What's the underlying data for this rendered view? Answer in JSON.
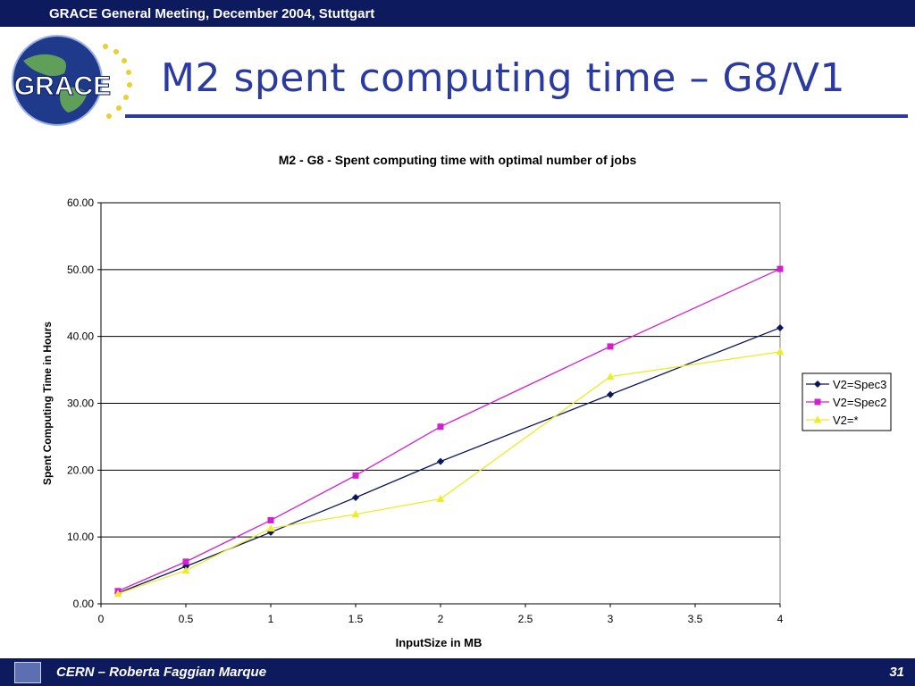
{
  "header": {
    "meeting": "GRACE General Meeting, December 2004, Stuttgart",
    "logo_text": "GRACE"
  },
  "slide": {
    "title": "M2 spent computing time – G8/V1"
  },
  "footer": {
    "author": "CERN – Roberta Faggian Marque",
    "page": "31"
  },
  "colors": {
    "bar_bg": "#0d1b5e",
    "title": "#2b3aa0",
    "spec3": "#0b1560",
    "spec2": "#d21fd2",
    "star": "#ecec2a"
  },
  "chart_data": {
    "type": "line",
    "title": "M2 - G8 - Spent computing time with optimal number of jobs",
    "xlabel": "InputSize in MB",
    "ylabel": "Spent Computing Time in Hours",
    "xlim": [
      0,
      4
    ],
    "ylim": [
      0,
      60
    ],
    "x_ticks": [
      "0",
      "0.5",
      "1",
      "1.5",
      "2",
      "2.5",
      "3",
      "3.5",
      "4"
    ],
    "y_ticks": [
      "0.00",
      "10.00",
      "20.00",
      "30.00",
      "40.00",
      "50.00",
      "60.00"
    ],
    "grid": "horizontal",
    "legend_position": "right",
    "series": [
      {
        "name": "V2=Spec3",
        "color": "#0b1560",
        "marker": "diamond",
        "points": [
          [
            0.1,
            1.6
          ],
          [
            0.5,
            5.6
          ],
          [
            1,
            10.7
          ],
          [
            1.5,
            15.9
          ],
          [
            2,
            21.3
          ],
          [
            3,
            31.3
          ],
          [
            4,
            41.3
          ]
        ]
      },
      {
        "name": "V2=Spec2",
        "color": "#d21fd2",
        "marker": "square",
        "points": [
          [
            0.1,
            1.9
          ],
          [
            0.5,
            6.3
          ],
          [
            1,
            12.5
          ],
          [
            1.5,
            19.2
          ],
          [
            2,
            26.5
          ],
          [
            3,
            38.5
          ],
          [
            4,
            50.1
          ]
        ]
      },
      {
        "name": "V2=*",
        "color": "#ecec2a",
        "marker": "triangle",
        "points": [
          [
            0.1,
            1.5
          ],
          [
            0.5,
            5.0
          ],
          [
            1,
            11.3
          ],
          [
            1.5,
            13.4
          ],
          [
            2,
            15.7
          ],
          [
            3,
            34.0
          ],
          [
            4,
            37.7
          ]
        ]
      }
    ]
  }
}
